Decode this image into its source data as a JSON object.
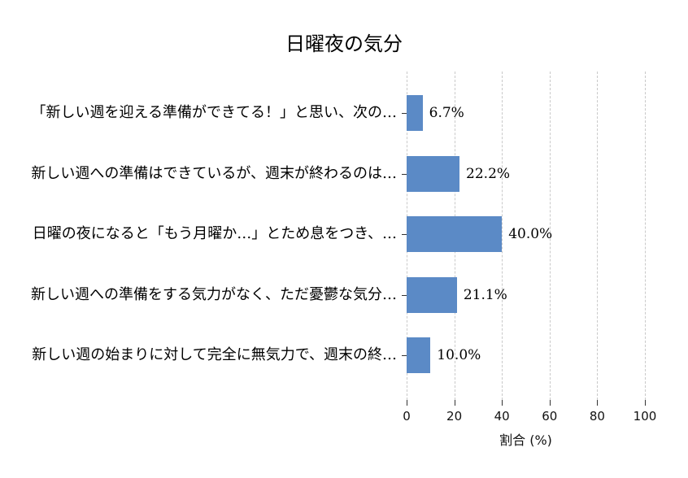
{
  "chart_data": {
    "type": "bar",
    "orientation": "horizontal",
    "title": "日曜夜の気分",
    "xlabel": "割合 (%)",
    "xlim": [
      0,
      100
    ],
    "xticks": [
      "0",
      "20",
      "40",
      "60",
      "80",
      "100"
    ],
    "xtick_values": [
      0,
      20,
      40,
      60,
      80,
      100
    ],
    "grid": "vertical-dashed",
    "legend": "none",
    "categories": [
      "「新しい週を迎える準備ができてる！」と思い、次の…",
      "新しい週への準備はできているが、週末が終わるのは…",
      "日曜の夜になると「もう月曜か…」とため息をつき、…",
      "新しい週への準備をする気力がなく、ただ憂鬱な気分…",
      "新しい週の始まりに対して完全に無気力で、週末の終…"
    ],
    "values": [
      6.7,
      22.2,
      40.0,
      21.1,
      10.0
    ],
    "value_labels": [
      "6.7%",
      "22.2%",
      "40.0%",
      "21.1%",
      "10.0%"
    ],
    "colors": {
      "bar": "#5b8ac6",
      "grid": "#c9c9c9",
      "text": "#000000",
      "tick": "#333333",
      "background": "#ffffff"
    }
  }
}
